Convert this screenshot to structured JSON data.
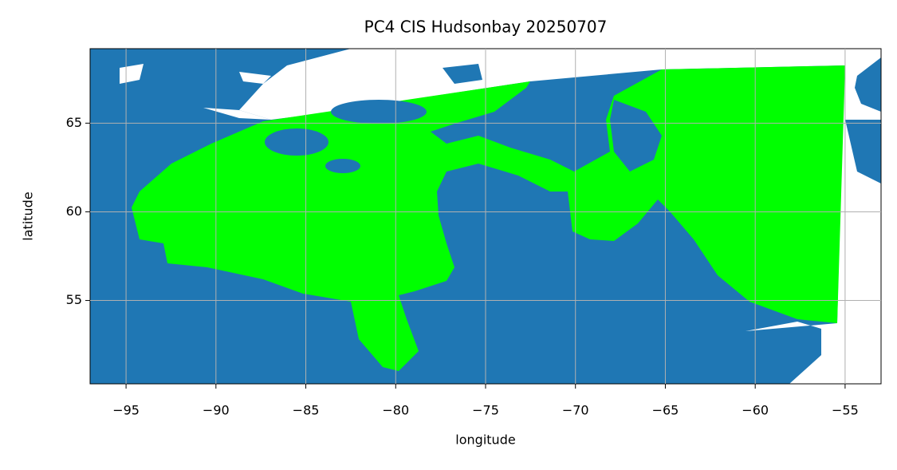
{
  "chart_data": {
    "type": "map",
    "title": "PC4 CIS Hudsonbay 20250707",
    "xlabel": "longitude",
    "ylabel": "latitude",
    "xlim": [
      -97,
      -53
    ],
    "ylim": [
      50.3,
      69.2
    ],
    "xticks": [
      {
        "value": -95,
        "label": "−95"
      },
      {
        "value": -90,
        "label": "−90"
      },
      {
        "value": -85,
        "label": "−85"
      },
      {
        "value": -80,
        "label": "−80"
      },
      {
        "value": -75,
        "label": "−75"
      },
      {
        "value": -70,
        "label": "−70"
      },
      {
        "value": -65,
        "label": "−65"
      },
      {
        "value": -60,
        "label": "−60"
      },
      {
        "value": -55,
        "label": "−55"
      }
    ],
    "yticks": [
      55,
      60,
      65
    ],
    "grid": true
  }
}
